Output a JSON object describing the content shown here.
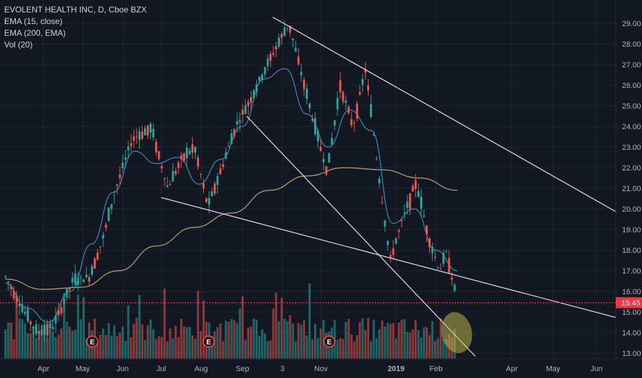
{
  "legend": {
    "symbol": "EVOLENT HEALTH INC, D, Cboe BZX",
    "ema15": "EMA (15, close)",
    "ema200": "EMA (200, EMA)",
    "vol": "Vol (20)"
  },
  "colors": {
    "background": "#131722",
    "grid": "#1f2433",
    "up": "#26a69a",
    "down": "#ef5350",
    "ema15": "#3b8ec0",
    "ema200": "#bfa86a",
    "trendline": "#e8e8e8",
    "last_price": "#f23645",
    "highlight": "#c8c04a",
    "earnings": "#ef5350"
  },
  "earnings_marker": "E",
  "chart_data": {
    "type": "candlestick",
    "title": "EVOLENT HEALTH INC, D, Cboe BZX",
    "ylim": [
      12.85,
      29.35
    ],
    "y_ticks": [
      "13.00",
      "14.00",
      "15.00",
      "16.00",
      "17.00",
      "18.00",
      "19.00",
      "20.00",
      "21.00",
      "22.00",
      "23.00",
      "24.00",
      "25.00",
      "26.00",
      "27.00",
      "28.00",
      "29.00"
    ],
    "x_ticks": [
      "Apr",
      "May",
      "Jun",
      "Jul",
      "Aug",
      "Sep",
      "3",
      "Nov",
      "2019",
      "Feb",
      "Apr",
      "May",
      "Jun"
    ],
    "last_price": "15.45",
    "price_path": [
      [
        "Mar",
        16.7
      ],
      [
        "Mar",
        15.0
      ],
      [
        "Mar",
        14.0
      ],
      [
        "Apr",
        14.3
      ],
      [
        "Apr",
        16.5
      ],
      [
        "May",
        16.7
      ],
      [
        "May",
        18.5
      ],
      [
        "May",
        21.0
      ],
      [
        "Jun",
        23.4
      ],
      [
        "Jun",
        23.9
      ],
      [
        "Jul",
        21.0
      ],
      [
        "Jul",
        22.4
      ],
      [
        "Jul",
        23.0
      ],
      [
        "Aug",
        20.1
      ],
      [
        "Aug",
        22.0
      ],
      [
        "Aug",
        24.0
      ],
      [
        "Sep",
        25.5
      ],
      [
        "Sep",
        27.5
      ],
      [
        "Oct",
        29.0
      ],
      [
        "Oct",
        26.5
      ],
      [
        "Oct",
        24.0
      ],
      [
        "Nov",
        21.8
      ],
      [
        "Nov",
        26.0
      ],
      [
        "Nov",
        24.0
      ],
      [
        "Dec",
        26.8
      ],
      [
        "Dec",
        22.0
      ],
      [
        "Dec",
        17.5
      ],
      [
        "Jan",
        19.5
      ],
      [
        "Jan",
        21.3
      ],
      [
        "Jan",
        18.5
      ],
      [
        "Feb",
        17.0
      ],
      [
        "Feb",
        17.9
      ],
      [
        "Feb",
        15.45
      ]
    ],
    "ema15_level_path": [
      16.4,
      15.2,
      14.5,
      16.0,
      18.3,
      20.8,
      22.8,
      22.2,
      22.5,
      21.2,
      22.4,
      24.0,
      26.3,
      26.8,
      24.6,
      23.0,
      24.8,
      23.8,
      19.3,
      20.0,
      18.0,
      17.0
    ],
    "ema200_level_path": [
      16.6,
      16.1,
      16.2,
      17.0,
      18.2,
      19.1,
      19.8,
      20.9,
      21.6,
      22.0,
      21.9,
      21.5,
      20.9
    ],
    "volume": "Vol (20)",
    "earnings_dates": [
      "May",
      "Aug",
      "Nov"
    ],
    "trendlines": [
      {
        "from": [
          "Oct",
          29.3
        ],
        "to": [
          "Jun+",
          19.15
        ]
      },
      {
        "from": [
          "Jul",
          20.55
        ],
        "to": [
          "Jun+",
          14.4
        ]
      },
      {
        "from": [
          "Sep",
          24.5
        ],
        "to": [
          "Feb",
          12.85
        ]
      }
    ],
    "grid": true,
    "y_axis_position": "right"
  }
}
